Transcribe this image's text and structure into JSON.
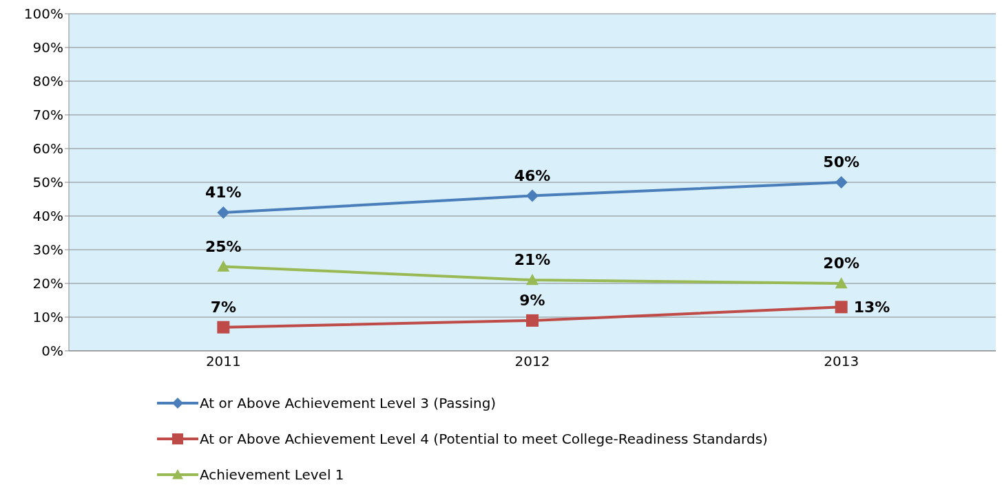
{
  "chart_data": {
    "type": "line",
    "categories": [
      "2011",
      "2012",
      "2013"
    ],
    "series": [
      {
        "name": "At or Above Achievement Level 3 (Passing)",
        "color": "#4a7ebb",
        "marker": "diamond",
        "values": [
          41,
          46,
          50
        ],
        "value_labels": [
          "41%",
          "46%",
          "50%"
        ]
      },
      {
        "name": "At or Above Achievement Level 4 (Potential to meet College-Readiness Standards)",
        "color": "#be4b48",
        "marker": "square",
        "values": [
          7,
          9,
          13
        ],
        "value_labels": [
          "7%",
          "9%",
          "13%"
        ]
      },
      {
        "name": "Achievement Level 1",
        "color": "#98b954",
        "marker": "triangle",
        "values": [
          25,
          21,
          20
        ],
        "value_labels": [
          "25%",
          "21%",
          "20%"
        ]
      }
    ],
    "ylim": [
      0,
      100
    ],
    "yticks": [
      {
        "value": 0,
        "label": "0%"
      },
      {
        "value": 10,
        "label": "10%"
      },
      {
        "value": 20,
        "label": "20%"
      },
      {
        "value": 30,
        "label": "30%"
      },
      {
        "value": 40,
        "label": "40%"
      },
      {
        "value": 50,
        "label": "50%"
      },
      {
        "value": 60,
        "label": "60%"
      },
      {
        "value": 70,
        "label": "70%"
      },
      {
        "value": 80,
        "label": "80%"
      },
      {
        "value": 90,
        "label": "90%"
      },
      {
        "value": 100,
        "label": "100%"
      }
    ],
    "grid": "y",
    "legend": "bottom",
    "line_style": "solid"
  }
}
